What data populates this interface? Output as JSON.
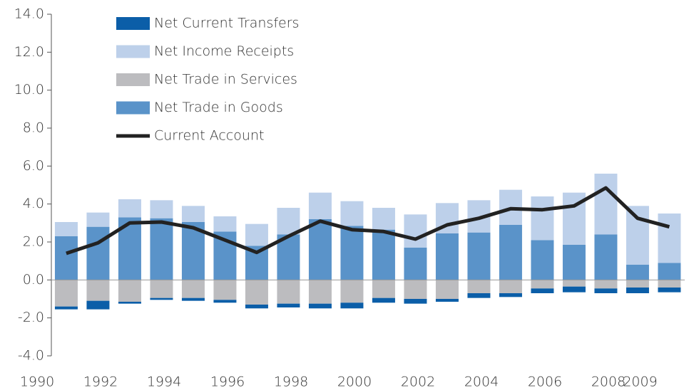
{
  "chart_data": {
    "type": "bar",
    "x": [
      1990,
      1991,
      1992,
      1993,
      1994,
      1995,
      1996,
      1997,
      1998,
      1999,
      2000,
      2001,
      2002,
      2003,
      2004,
      2005,
      2006,
      2007,
      2008,
      2009
    ],
    "xlim": [
      1990,
      2009
    ],
    "xticks": [
      1990,
      1992,
      1994,
      1996,
      1998,
      2000,
      2002,
      2004,
      2006,
      2008,
      2009
    ],
    "ylim": [
      -4,
      14
    ],
    "yticks": [
      {
        "value": -4,
        "label": "-4.0"
      },
      {
        "value": -2,
        "label": "-2.0"
      },
      {
        "value": 0,
        "label": "0.0"
      },
      {
        "value": 2,
        "label": "2.0"
      },
      {
        "value": 4,
        "label": "4.0"
      },
      {
        "value": 6,
        "label": "6.0"
      },
      {
        "value": 8,
        "label": "8.0"
      },
      {
        "value": 10,
        "label": "10.0"
      },
      {
        "value": 12,
        "label": "12.0"
      },
      {
        "value": 14,
        "label": "14.0"
      }
    ],
    "stacked": true,
    "series": [
      {
        "name": "Net Current Transfers",
        "color": "#0b5ea8",
        "values": [
          -0.15,
          -0.45,
          -0.1,
          -0.1,
          -0.15,
          -0.15,
          -0.2,
          -0.2,
          -0.25,
          -0.3,
          -0.25,
          -0.25,
          -0.15,
          -0.25,
          -0.2,
          -0.25,
          -0.3,
          -0.25,
          -0.3,
          -0.25
        ]
      },
      {
        "name": "Net Income Receipts",
        "color": "#bdd0ea",
        "values": [
          0.75,
          0.75,
          0.95,
          0.95,
          0.85,
          0.8,
          1.15,
          1.4,
          1.4,
          1.3,
          1.15,
          1.75,
          1.6,
          1.7,
          1.85,
          2.3,
          2.75,
          3.2,
          3.1,
          2.6
        ]
      },
      {
        "name": "Net Trade in Services",
        "color": "#bcbcbf",
        "values": [
          -1.4,
          -1.1,
          -1.15,
          -0.95,
          -0.95,
          -1.05,
          -1.3,
          -1.25,
          -1.25,
          -1.2,
          -0.95,
          -1.0,
          -1.0,
          -0.7,
          -0.7,
          -0.45,
          -0.35,
          -0.45,
          -0.4,
          -0.4
        ]
      },
      {
        "name": "Net Trade in Goods",
        "color": "#5a93c9",
        "values": [
          2.3,
          2.8,
          3.3,
          3.25,
          3.05,
          2.55,
          1.8,
          2.4,
          3.2,
          2.85,
          2.65,
          1.7,
          2.45,
          2.5,
          2.9,
          2.1,
          1.85,
          2.4,
          0.8,
          0.9
        ]
      },
      {
        "name": "Current Account",
        "type": "line",
        "color": "#222222",
        "values": [
          1.4,
          1.95,
          3.0,
          3.05,
          2.75,
          2.1,
          1.45,
          2.3,
          3.1,
          2.65,
          2.55,
          2.15,
          2.9,
          3.25,
          3.75,
          3.7,
          3.9,
          4.85,
          3.25,
          2.8
        ]
      }
    ]
  }
}
